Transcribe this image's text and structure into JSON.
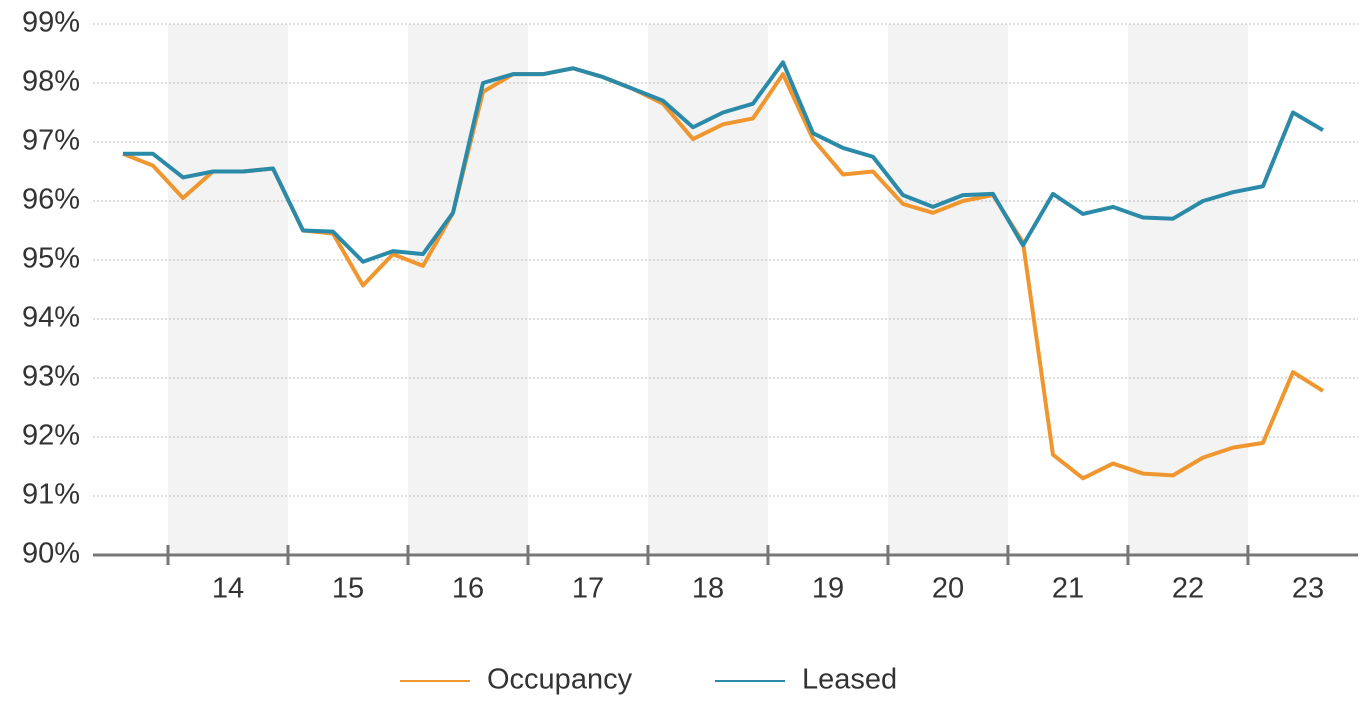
{
  "chart_data": {
    "type": "line",
    "x": [
      13.625,
      13.875,
      14.125,
      14.375,
      14.625,
      14.875,
      15.125,
      15.375,
      15.625,
      15.875,
      16.125,
      16.375,
      16.625,
      16.875,
      17.125,
      17.375,
      17.625,
      17.875,
      18.125,
      18.375,
      18.625,
      18.875,
      19.125,
      19.375,
      19.625,
      19.875,
      20.125,
      20.375,
      20.625,
      20.875,
      21.125,
      21.375,
      21.625,
      21.875,
      22.125,
      22.375,
      22.625,
      22.875,
      23.125,
      23.375,
      23.625
    ],
    "series": [
      {
        "name": "Occupancy",
        "color": "#f0962e",
        "values": [
          96.8,
          96.6,
          96.05,
          96.5,
          96.5,
          96.55,
          95.5,
          95.45,
          94.57,
          95.1,
          94.9,
          95.8,
          97.85,
          98.15,
          98.15,
          98.25,
          98.1,
          97.9,
          97.65,
          97.05,
          97.3,
          97.4,
          98.15,
          97.05,
          96.45,
          96.5,
          95.95,
          95.8,
          96.0,
          96.1,
          95.3,
          91.7,
          91.3,
          91.55,
          91.38,
          91.35,
          91.65,
          91.82,
          91.9,
          93.1,
          92.78
        ]
      },
      {
        "name": "Leased",
        "color": "#2a8aa8",
        "values": [
          96.8,
          96.8,
          96.4,
          96.5,
          96.5,
          96.55,
          95.5,
          95.48,
          94.97,
          95.15,
          95.1,
          95.8,
          98.0,
          98.15,
          98.15,
          98.25,
          98.1,
          97.9,
          97.7,
          97.25,
          97.5,
          97.65,
          98.35,
          97.15,
          96.9,
          96.75,
          96.1,
          95.9,
          96.1,
          96.12,
          95.25,
          96.12,
          95.78,
          95.9,
          95.72,
          95.7,
          96.0,
          96.15,
          96.25,
          97.5,
          97.2
        ]
      }
    ],
    "xlim": [
      13.375,
      23.917
    ],
    "xticks": [
      {
        "value": 14.5,
        "label": "14"
      },
      {
        "value": 15.5,
        "label": "15"
      },
      {
        "value": 16.5,
        "label": "16"
      },
      {
        "value": 17.5,
        "label": "17"
      },
      {
        "value": 18.5,
        "label": "18"
      },
      {
        "value": 19.5,
        "label": "19"
      },
      {
        "value": 20.5,
        "label": "20"
      },
      {
        "value": 21.5,
        "label": "21"
      },
      {
        "value": 22.5,
        "label": "22"
      },
      {
        "value": 23.5,
        "label": "23"
      }
    ],
    "ylim": [
      90,
      99
    ],
    "yticks": [
      {
        "value": 90,
        "label": "90%"
      },
      {
        "value": 91,
        "label": "91%"
      },
      {
        "value": 92,
        "label": "92%"
      },
      {
        "value": 93,
        "label": "93%"
      },
      {
        "value": 94,
        "label": "94%"
      },
      {
        "value": 95,
        "label": "95%"
      },
      {
        "value": 96,
        "label": "96%"
      },
      {
        "value": 97,
        "label": "97%"
      },
      {
        "value": 98,
        "label": "98%"
      },
      {
        "value": 99,
        "label": "99%"
      }
    ],
    "grid": true,
    "legend": "bottom"
  }
}
